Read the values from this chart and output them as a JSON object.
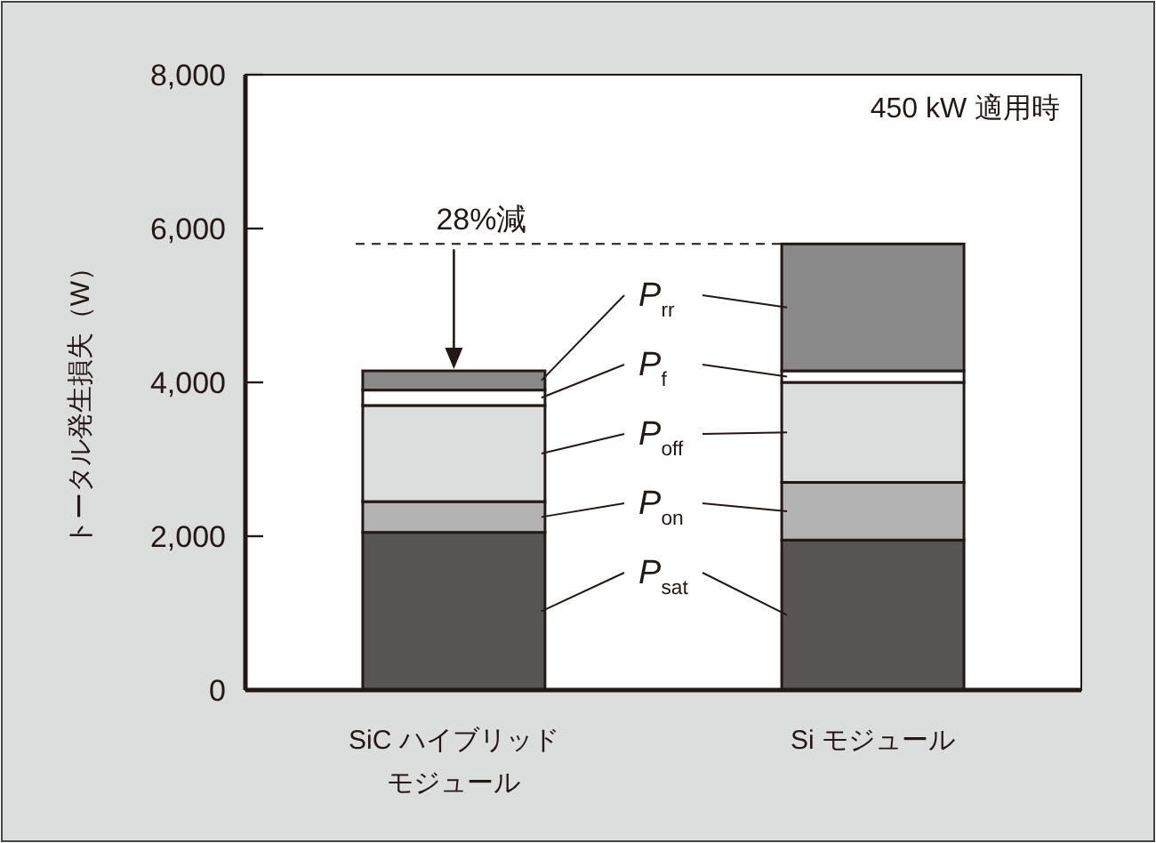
{
  "chart_data": {
    "type": "bar",
    "stacked": true,
    "ylabel": "トータル発生損失（W）",
    "categories": [
      "SiC ハイブリッドモジュール",
      "Si モジュール"
    ],
    "series": [
      {
        "name": "P$_{sat}$",
        "color": "#575654",
        "values": [
          2050,
          1950
        ]
      },
      {
        "name": "P$_{on}$",
        "color": "#b3b3b3",
        "values": [
          400,
          750
        ]
      },
      {
        "name": "P$_{off}$",
        "color": "#dcdddd",
        "values": [
          1250,
          1300
        ]
      },
      {
        "name": "P$_{f}$",
        "color": "#ffffff",
        "values": [
          200,
          150
        ]
      },
      {
        "name": "P$_{rr}$",
        "color": "#898989",
        "values": [
          250,
          1650
        ]
      }
    ],
    "ylim": [
      0,
      8000
    ],
    "yticks": [
      {
        "value": 0,
        "label": "0"
      },
      {
        "value": 2000,
        "label": "2,000"
      },
      {
        "value": 4000,
        "label": "4,000"
      },
      {
        "value": 6000,
        "label": "6,000"
      },
      {
        "value": 8000,
        "label": "8,000"
      }
    ],
    "ref_lines": [
      {
        "axis": "y",
        "value": 5800,
        "label": "28%減",
        "line_style": "dashed"
      }
    ],
    "annotations": [
      "450 kW 適用時"
    ],
    "legend": "center"
  }
}
